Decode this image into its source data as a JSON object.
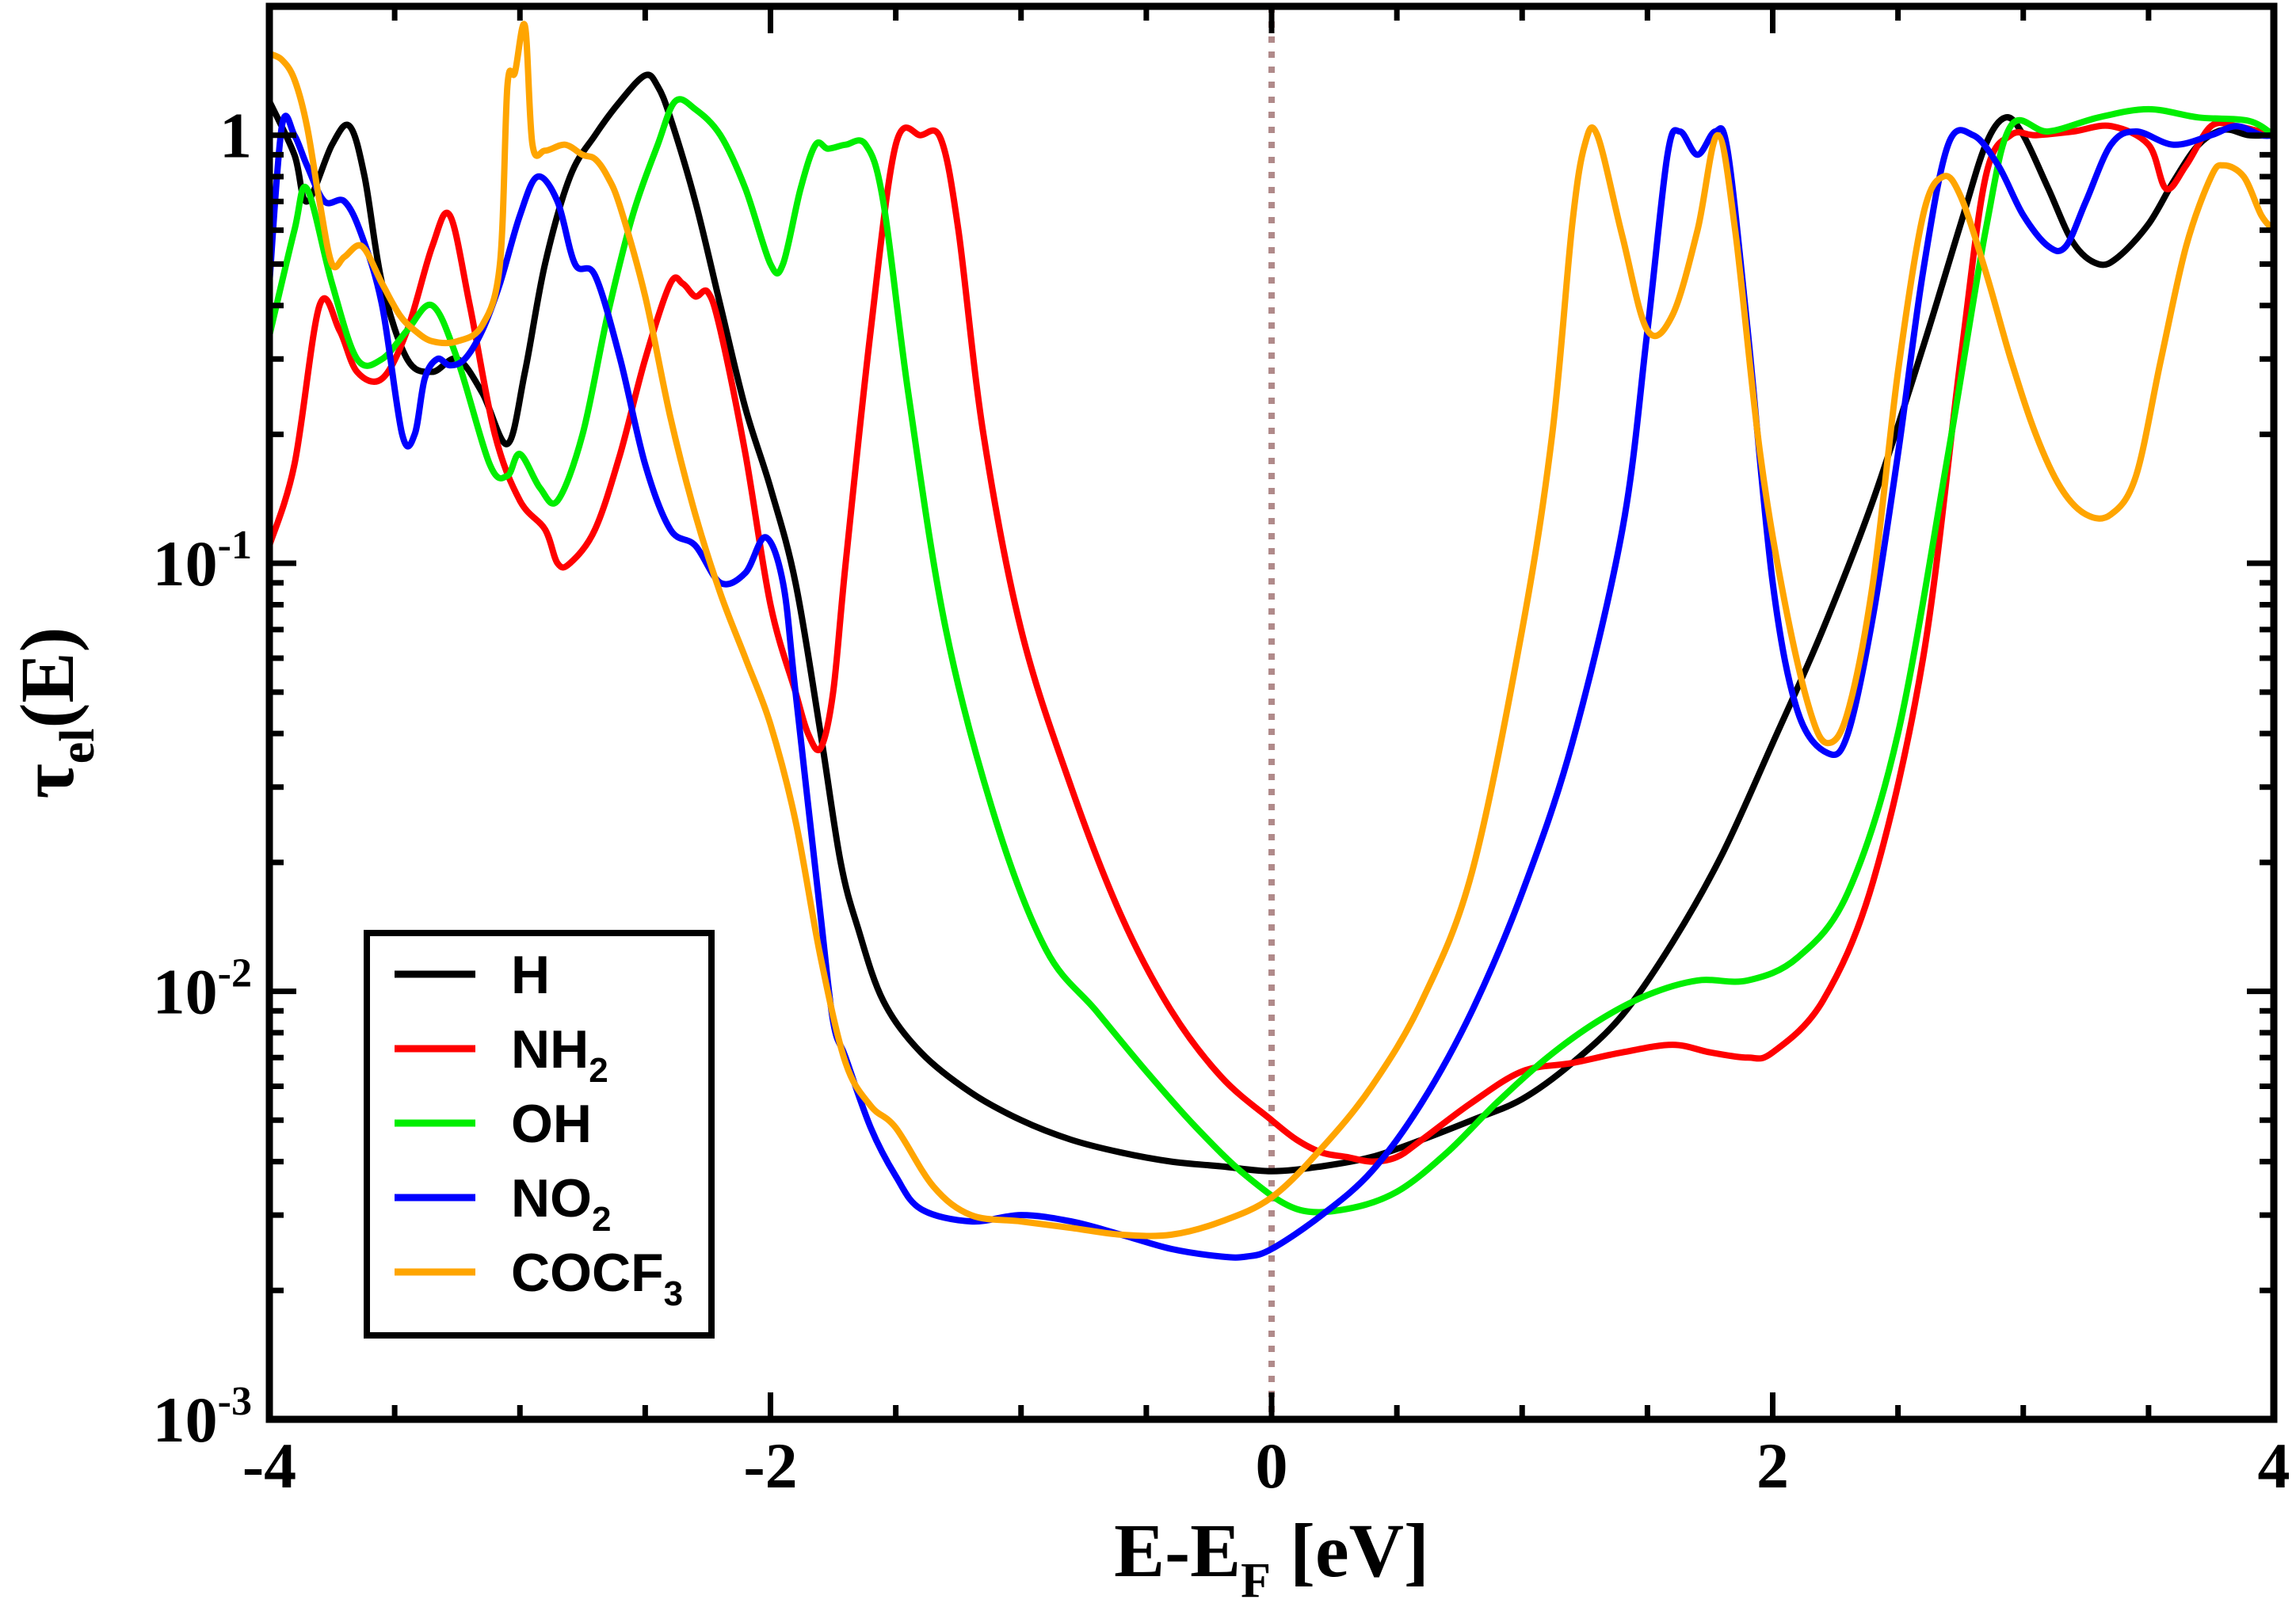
{
  "chart_data": {
    "type": "line",
    "xlabel": {
      "main": "E-E",
      "sub": "F",
      "suffix": " [eV]"
    },
    "ylabel": {
      "main": "τ",
      "sub": "el",
      "suffix": "(E)"
    },
    "xlim": [
      -4,
      4
    ],
    "ylim": [
      0.001,
      2
    ],
    "yscale": "log",
    "xticks": [
      {
        "value": -4,
        "label": "-4"
      },
      {
        "value": -2,
        "label": "-2"
      },
      {
        "value": 0,
        "label": "0"
      },
      {
        "value": 2,
        "label": "2"
      },
      {
        "value": 4,
        "label": "4"
      }
    ],
    "yticks": [
      {
        "value": 1,
        "base": "1",
        "exp": ""
      },
      {
        "value": 0.1,
        "base": "10",
        "exp": "-1"
      },
      {
        "value": 0.01,
        "base": "10",
        "exp": "-2"
      },
      {
        "value": 0.001,
        "base": "10",
        "exp": "-3"
      }
    ],
    "vline": {
      "x": 0,
      "color": "#b08a8a",
      "style": "dotted"
    },
    "legend": {
      "position": "bottom-left"
    },
    "series": [
      {
        "name": "H",
        "main": "H",
        "sub": "",
        "color": "#000000",
        "x": [
          -4.0,
          -3.9,
          -3.85,
          -3.75,
          -3.68,
          -3.62,
          -3.55,
          -3.45,
          -3.35,
          -3.25,
          -3.15,
          -3.05,
          -2.98,
          -2.9,
          -2.8,
          -2.7,
          -2.6,
          -2.5,
          -2.45,
          -2.4,
          -2.3,
          -2.2,
          -2.1,
          -2.0,
          -1.9,
          -1.8,
          -1.72,
          -1.65,
          -1.55,
          -1.4,
          -1.2,
          -1.0,
          -0.8,
          -0.6,
          -0.4,
          -0.2,
          0.0,
          0.2,
          0.4,
          0.6,
          0.8,
          1.0,
          1.2,
          1.4,
          1.6,
          1.8,
          2.0,
          2.2,
          2.4,
          2.6,
          2.75,
          2.85,
          2.93,
          3.0,
          3.1,
          3.2,
          3.3,
          3.38,
          3.5,
          3.6,
          3.7,
          3.8,
          3.9,
          4.0
        ],
        "y": [
          1.2,
          0.9,
          0.7,
          0.95,
          1.05,
          0.8,
          0.45,
          0.3,
          0.28,
          0.3,
          0.25,
          0.19,
          0.28,
          0.5,
          0.8,
          1.0,
          1.2,
          1.38,
          1.3,
          1.1,
          0.7,
          0.4,
          0.23,
          0.15,
          0.09,
          0.04,
          0.02,
          0.014,
          0.0095,
          0.0072,
          0.0058,
          0.005,
          0.0045,
          0.0042,
          0.004,
          0.0039,
          0.0038,
          0.0039,
          0.0041,
          0.0045,
          0.005,
          0.0056,
          0.0068,
          0.0088,
          0.013,
          0.021,
          0.038,
          0.07,
          0.14,
          0.32,
          0.62,
          0.95,
          1.1,
          1.0,
          0.75,
          0.56,
          0.5,
          0.52,
          0.62,
          0.78,
          0.95,
          1.03,
          1.0,
          1.0
        ]
      },
      {
        "name": "NH2",
        "main": "NH",
        "sub": "2",
        "color": "#ff0000",
        "x": [
          -4.0,
          -3.9,
          -3.8,
          -3.72,
          -3.65,
          -3.55,
          -3.45,
          -3.35,
          -3.28,
          -3.2,
          -3.1,
          -3.0,
          -2.9,
          -2.85,
          -2.8,
          -2.7,
          -2.6,
          -2.5,
          -2.4,
          -2.35,
          -2.3,
          -2.25,
          -2.2,
          -2.1,
          -2.0,
          -1.9,
          -1.85,
          -1.8,
          -1.75,
          -1.7,
          -1.6,
          -1.5,
          -1.4,
          -1.32,
          -1.25,
          -1.15,
          -1.0,
          -0.8,
          -0.6,
          -0.4,
          -0.2,
          0.0,
          0.1,
          0.2,
          0.3,
          0.4,
          0.5,
          0.6,
          0.8,
          1.0,
          1.2,
          1.4,
          1.6,
          1.75,
          1.9,
          2.0,
          2.2,
          2.4,
          2.6,
          2.75,
          2.85,
          2.95,
          3.05,
          3.2,
          3.35,
          3.5,
          3.57,
          3.65,
          3.75,
          3.85,
          4.0
        ],
        "y": [
          0.11,
          0.17,
          0.4,
          0.35,
          0.28,
          0.27,
          0.35,
          0.55,
          0.65,
          0.4,
          0.2,
          0.14,
          0.12,
          0.1,
          0.1,
          0.12,
          0.18,
          0.3,
          0.45,
          0.45,
          0.42,
          0.43,
          0.35,
          0.18,
          0.08,
          0.05,
          0.04,
          0.037,
          0.05,
          0.1,
          0.35,
          0.95,
          1.0,
          0.98,
          0.6,
          0.2,
          0.07,
          0.03,
          0.015,
          0.009,
          0.0063,
          0.005,
          0.0045,
          0.0042,
          0.0041,
          0.004,
          0.0041,
          0.0045,
          0.0055,
          0.0065,
          0.0068,
          0.0072,
          0.0075,
          0.0072,
          0.007,
          0.0072,
          0.0095,
          0.018,
          0.06,
          0.3,
          0.8,
          1.0,
          1.0,
          1.02,
          1.05,
          0.95,
          0.75,
          0.85,
          1.05,
          1.05,
          1.0
        ]
      },
      {
        "name": "OH",
        "main": "OH",
        "sub": "",
        "color": "#00ee00",
        "x": [
          -4.0,
          -3.9,
          -3.85,
          -3.75,
          -3.65,
          -3.55,
          -3.45,
          -3.35,
          -3.25,
          -3.12,
          -3.05,
          -3.0,
          -2.92,
          -2.85,
          -2.75,
          -2.65,
          -2.55,
          -2.45,
          -2.38,
          -2.3,
          -2.2,
          -2.1,
          -2.0,
          -1.95,
          -1.88,
          -1.82,
          -1.77,
          -1.7,
          -1.62,
          -1.55,
          -1.45,
          -1.3,
          -1.1,
          -0.9,
          -0.7,
          -0.5,
          -0.3,
          -0.1,
          0.1,
          0.3,
          0.5,
          0.7,
          0.9,
          1.1,
          1.3,
          1.5,
          1.7,
          1.9,
          2.1,
          2.3,
          2.5,
          2.7,
          2.85,
          2.95,
          3.1,
          3.3,
          3.5,
          3.7,
          3.9,
          4.0
        ],
        "y": [
          0.34,
          0.6,
          0.75,
          0.45,
          0.3,
          0.3,
          0.35,
          0.4,
          0.3,
          0.17,
          0.16,
          0.18,
          0.15,
          0.14,
          0.2,
          0.38,
          0.65,
          0.95,
          1.2,
          1.15,
          1.0,
          0.75,
          0.5,
          0.5,
          0.75,
          0.95,
          0.93,
          0.95,
          0.95,
          0.7,
          0.25,
          0.07,
          0.025,
          0.0125,
          0.009,
          0.0065,
          0.0048,
          0.0037,
          0.0031,
          0.0031,
          0.0034,
          0.0042,
          0.0055,
          0.007,
          0.0085,
          0.0098,
          0.0106,
          0.0106,
          0.012,
          0.017,
          0.04,
          0.18,
          0.6,
          1.05,
          1.02,
          1.1,
          1.15,
          1.1,
          1.08,
          1.0
        ]
      },
      {
        "name": "NO2",
        "main": "NO",
        "sub": "2",
        "color": "#0000ff",
        "x": [
          -4.0,
          -3.95,
          -3.9,
          -3.85,
          -3.78,
          -3.7,
          -3.63,
          -3.55,
          -3.47,
          -3.42,
          -3.38,
          -3.33,
          -3.28,
          -3.22,
          -3.15,
          -3.08,
          -3.0,
          -2.93,
          -2.85,
          -2.78,
          -2.7,
          -2.6,
          -2.5,
          -2.4,
          -2.3,
          -2.2,
          -2.1,
          -2.02,
          -1.95,
          -1.9,
          -1.8,
          -1.75,
          -1.7,
          -1.6,
          -1.5,
          -1.4,
          -1.2,
          -1.0,
          -0.8,
          -0.6,
          -0.4,
          -0.2,
          -0.1,
          0.0,
          0.2,
          0.4,
          0.6,
          0.8,
          1.0,
          1.2,
          1.4,
          1.5,
          1.58,
          1.63,
          1.7,
          1.77,
          1.82,
          1.9,
          2.0,
          2.1,
          2.22,
          2.3,
          2.4,
          2.5,
          2.6,
          2.7,
          2.8,
          2.9,
          3.0,
          3.1,
          3.17,
          3.25,
          3.35,
          3.45,
          3.6,
          3.75,
          3.85,
          3.95,
          4.0
        ],
        "y": [
          0.45,
          1.05,
          1.0,
          0.85,
          0.7,
          0.7,
          0.58,
          0.4,
          0.2,
          0.2,
          0.27,
          0.3,
          0.29,
          0.3,
          0.35,
          0.45,
          0.65,
          0.8,
          0.7,
          0.5,
          0.47,
          0.3,
          0.17,
          0.12,
          0.11,
          0.09,
          0.095,
          0.115,
          0.09,
          0.05,
          0.015,
          0.0085,
          0.007,
          0.0048,
          0.0037,
          0.0031,
          0.0029,
          0.003,
          0.0029,
          0.0027,
          0.0025,
          0.0024,
          0.0024,
          0.0025,
          0.003,
          0.0038,
          0.0055,
          0.009,
          0.017,
          0.038,
          0.12,
          0.35,
          0.9,
          1.02,
          0.9,
          1.02,
          0.92,
          0.35,
          0.09,
          0.045,
          0.036,
          0.04,
          0.075,
          0.18,
          0.48,
          0.95,
          1.0,
          0.85,
          0.65,
          0.55,
          0.55,
          0.7,
          0.95,
          1.02,
          0.95,
          1.0,
          1.05,
          1.0,
          1.0
        ]
      },
      {
        "name": "COCF3",
        "main": "COCF",
        "sub": "3",
        "color": "#ffa500",
        "x": [
          -4.0,
          -3.95,
          -3.9,
          -3.85,
          -3.8,
          -3.75,
          -3.7,
          -3.63,
          -3.55,
          -3.48,
          -3.42,
          -3.35,
          -3.25,
          -3.15,
          -3.08,
          -3.05,
          -3.02,
          -2.98,
          -2.95,
          -2.9,
          -2.82,
          -2.75,
          -2.7,
          -2.65,
          -2.6,
          -2.5,
          -2.4,
          -2.3,
          -2.2,
          -2.1,
          -2.0,
          -1.9,
          -1.8,
          -1.7,
          -1.6,
          -1.5,
          -1.35,
          -1.2,
          -1.0,
          -0.8,
          -0.6,
          -0.4,
          -0.2,
          0.0,
          0.2,
          0.4,
          0.6,
          0.8,
          1.0,
          1.12,
          1.2,
          1.25,
          1.3,
          1.4,
          1.5,
          1.6,
          1.7,
          1.78,
          1.85,
          1.95,
          2.05,
          2.15,
          2.22,
          2.3,
          2.4,
          2.5,
          2.6,
          2.68,
          2.75,
          2.85,
          2.95,
          3.05,
          3.15,
          3.25,
          3.35,
          3.45,
          3.55,
          3.65,
          3.75,
          3.8,
          3.88,
          3.95,
          4.0
        ],
        "y": [
          1.55,
          1.5,
          1.35,
          1.05,
          0.7,
          0.5,
          0.52,
          0.55,
          0.45,
          0.38,
          0.35,
          0.33,
          0.33,
          0.36,
          0.5,
          1.3,
          1.4,
          1.8,
          0.95,
          0.92,
          0.95,
          0.9,
          0.88,
          0.8,
          0.68,
          0.42,
          0.22,
          0.13,
          0.085,
          0.06,
          0.042,
          0.025,
          0.012,
          0.0068,
          0.0054,
          0.0048,
          0.0035,
          0.003,
          0.0029,
          0.0028,
          0.0027,
          0.0027,
          0.0029,
          0.0033,
          0.0043,
          0.006,
          0.0095,
          0.019,
          0.07,
          0.2,
          0.62,
          0.95,
          1.0,
          0.58,
          0.35,
          0.38,
          0.6,
          1.0,
          0.6,
          0.18,
          0.08,
          0.045,
          0.038,
          0.045,
          0.09,
          0.28,
          0.65,
          0.8,
          0.72,
          0.48,
          0.3,
          0.2,
          0.15,
          0.13,
          0.13,
          0.16,
          0.3,
          0.55,
          0.8,
          0.85,
          0.8,
          0.65,
          0.6
        ]
      }
    ]
  }
}
